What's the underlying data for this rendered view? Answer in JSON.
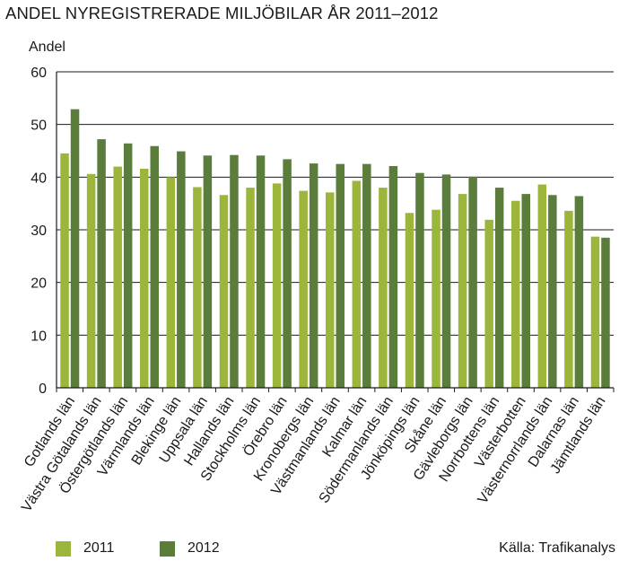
{
  "chart_data": {
    "type": "bar",
    "title": "ANDEL NYREGISTRERADE MILJÖBILAR ÅR 2011–2012",
    "ylabel": "Andel",
    "xlabel": "",
    "ylim": [
      0,
      60
    ],
    "yticks": [
      0,
      10,
      20,
      30,
      40,
      50,
      60
    ],
    "grid": true,
    "legend_position": "bottom-left",
    "source": "Källa: Trafikanalys",
    "categories": [
      "Gotlands län",
      "Västra Götalands län",
      "Östergötlands län",
      "Värmlands län",
      "Blekinge län",
      "Uppsala län",
      "Hallands län",
      "Stockholms län",
      "Örebro län",
      "Kronobergs län",
      "Västmanlands län",
      "Kalmar län",
      "Södermanlands län",
      "Jönköpings län",
      "Skåne län",
      "Gävleborgs län",
      "Norrbottens län",
      "Västerbotten",
      "Västernorrlands län",
      "Dalarnas län",
      "Jämtlands län"
    ],
    "series": [
      {
        "name": "2011",
        "color": "#9bb63a",
        "values": [
          44.5,
          40.6,
          42.0,
          41.6,
          40.0,
          38.1,
          36.6,
          38.0,
          38.8,
          37.4,
          37.1,
          39.3,
          38.0,
          33.2,
          33.8,
          36.8,
          31.9,
          35.5,
          38.6,
          33.6,
          28.7
        ]
      },
      {
        "name": "2012",
        "color": "#5a7d3c",
        "values": [
          52.9,
          47.2,
          46.4,
          45.9,
          44.9,
          44.1,
          44.2,
          44.1,
          43.4,
          42.6,
          42.5,
          42.5,
          42.1,
          40.8,
          40.5,
          40.1,
          38.0,
          36.8,
          36.6,
          36.4,
          28.5
        ]
      }
    ]
  }
}
